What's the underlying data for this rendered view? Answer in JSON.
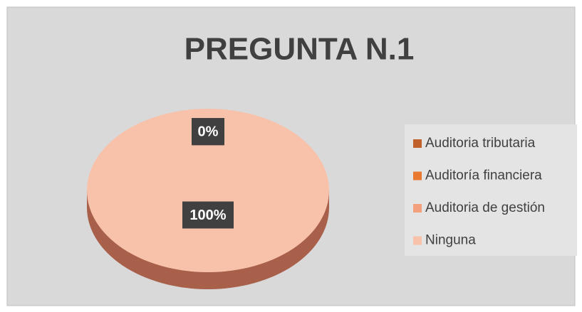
{
  "chart_data": {
    "type": "pie",
    "title": "PREGUNTA N.1",
    "categories": [
      "Auditoria tributaria",
      "Auditoría financiera",
      "Auditoria de gestión",
      "Ninguna"
    ],
    "values": [
      0,
      0,
      0,
      100
    ],
    "value_labels": [
      "0%",
      "0%",
      "0%",
      "100%"
    ],
    "colors": [
      "#c0602a",
      "#e8792f",
      "#f3a07c",
      "#f8c1a9"
    ],
    "legend": "right"
  }
}
